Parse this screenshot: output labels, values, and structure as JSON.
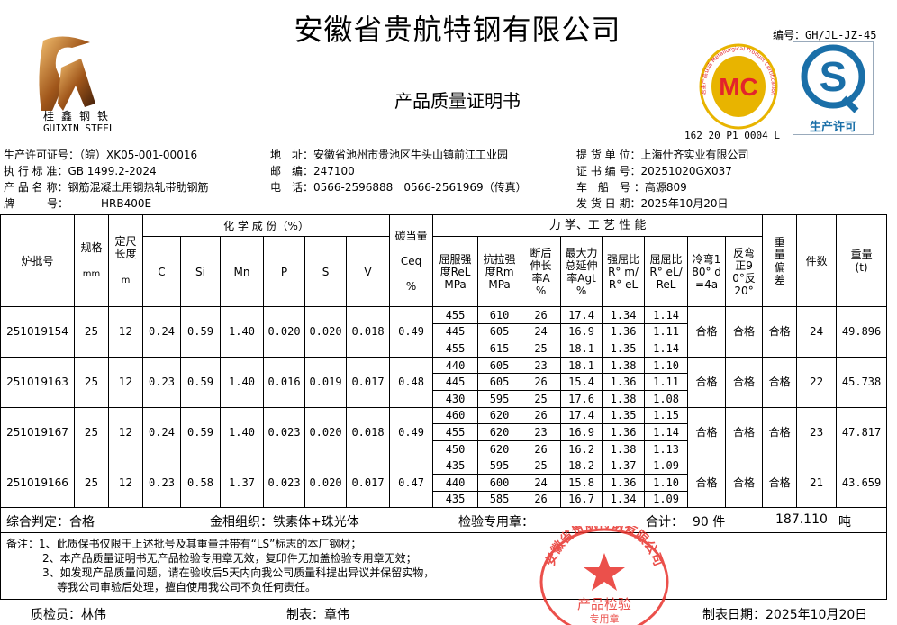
{
  "header": {
    "company": "安徽省贵航特钢有限公司",
    "doc_title": "产品质量证明书",
    "doc_number": "编号：GH/JL-JZ-45",
    "logo_cn": "桂鑫钢铁",
    "logo_en": "GUIXIN STEEL",
    "mc_text": "MC",
    "mc_ring": "冶金产品认证 Metallurgical Product Certification",
    "mc_code": "162 20 P1 0004 L",
    "qs_label": "生产许可"
  },
  "info": {
    "license": "生产许可证号：（皖）XK05-001-00016",
    "standard": "执 行 标 准：GB 1499.2-2024",
    "product": "产 品 名 称：钢筋混凝土用钢热轧带肋钢筋",
    "grade_label": "牌　　　号：",
    "grade": "HRB400E",
    "address": "地　址：安徽省池州市贵池区牛头山镇前江工业园",
    "postcode": "邮　编：247100",
    "phone": "电　话：0566-2596888　0566-2561969（传真）",
    "consignee": "提 货 单 位：上海仕齐实业有限公司",
    "cert_no": "证 书 编 号：20251020GX037",
    "vehicle": "车　船　号 ：高源809",
    "ship_date": "发 货 日 期：2025年10月20日"
  },
  "table": {
    "h_batch": "炉批号",
    "h_spec": "规格",
    "h_spec_u": "mm",
    "h_len": "定尺长度",
    "h_len_u": "m",
    "h_chem": "化 学 成 份（%）",
    "chem_cols": [
      "C",
      "Si",
      "Mn",
      "P",
      "S",
      "V"
    ],
    "h_ceq": "碳当量",
    "h_ceq2": "Ceq",
    "h_ceq_u": "%",
    "h_mech": "力 学、工 艺 性 能",
    "mech_cols": [
      "屈服强度ReL MPa",
      "抗拉强度Rm MPa",
      "断后伸长率A %",
      "最大力总延伸率Agt %",
      "强屈比R° m/R° eL",
      "屈屈比R° eL/ReL",
      "冷弯180° d=4a",
      "反弯正90°反20°"
    ],
    "h_dev": "重量偏差",
    "h_pcs": "件数",
    "h_wt": "重量(t)"
  },
  "batches": [
    {
      "batch": "251019154",
      "spec": "25",
      "len": "12",
      "chem": [
        "0.24",
        "0.59",
        "1.40",
        "0.020",
        "0.020",
        "0.018"
      ],
      "ceq": "0.49",
      "mech": [
        [
          "455",
          "610",
          "26",
          "17.4",
          "1.34",
          "1.14"
        ],
        [
          "445",
          "605",
          "24",
          "16.9",
          "1.36",
          "1.11"
        ],
        [
          "455",
          "615",
          "25",
          "18.1",
          "1.35",
          "1.14"
        ]
      ],
      "bend": "合格",
      "rebend": "合格",
      "dev": "合格",
      "pcs": "24",
      "wt": "49.896"
    },
    {
      "batch": "251019163",
      "spec": "25",
      "len": "12",
      "chem": [
        "0.23",
        "0.59",
        "1.40",
        "0.016",
        "0.019",
        "0.017"
      ],
      "ceq": "0.48",
      "mech": [
        [
          "440",
          "605",
          "23",
          "18.1",
          "1.38",
          "1.10"
        ],
        [
          "445",
          "605",
          "26",
          "15.4",
          "1.36",
          "1.11"
        ],
        [
          "430",
          "595",
          "25",
          "17.6",
          "1.38",
          "1.08"
        ]
      ],
      "bend": "合格",
      "rebend": "合格",
      "dev": "合格",
      "pcs": "22",
      "wt": "45.738"
    },
    {
      "batch": "251019167",
      "spec": "25",
      "len": "12",
      "chem": [
        "0.24",
        "0.59",
        "1.40",
        "0.023",
        "0.020",
        "0.018"
      ],
      "ceq": "0.49",
      "mech": [
        [
          "460",
          "620",
          "26",
          "17.4",
          "1.35",
          "1.15"
        ],
        [
          "455",
          "620",
          "23",
          "16.9",
          "1.36",
          "1.14"
        ],
        [
          "450",
          "620",
          "26",
          "16.2",
          "1.38",
          "1.13"
        ]
      ],
      "bend": "合格",
      "rebend": "合格",
      "dev": "合格",
      "pcs": "23",
      "wt": "47.817"
    },
    {
      "batch": "251019166",
      "spec": "25",
      "len": "12",
      "chem": [
        "0.23",
        "0.58",
        "1.37",
        "0.023",
        "0.020",
        "0.017"
      ],
      "ceq": "0.47",
      "mech": [
        [
          "435",
          "595",
          "25",
          "18.2",
          "1.37",
          "1.09"
        ],
        [
          "440",
          "600",
          "24",
          "15.8",
          "1.36",
          "1.10"
        ],
        [
          "435",
          "585",
          "26",
          "16.7",
          "1.34",
          "1.09"
        ]
      ],
      "bend": "合格",
      "rebend": "合格",
      "dev": "合格",
      "pcs": "21",
      "wt": "43.659"
    }
  ],
  "summary": {
    "verdict": "综合判定：合格",
    "structure": "金相组织：铁素体+珠光体",
    "stamp_label": "检验专用章：",
    "total_label": "合计：",
    "total_pcs": "90 件",
    "total_wt": "187.110",
    "unit": "吨"
  },
  "remarks": [
    "备注：1、此质保书仅限于上述批号及其重量并带有“LS”标志的本厂钢材；",
    "2、本产品质量证明书无产品检验专用章无效，复印件无加盖检验专用章无效；",
    "3、如发现产品质量问题，请在验收后5天内向我公司质量科提出异议并保留实物，",
    "等我公司审验后处理，擅自使用我公司不负任何责任。"
  ],
  "stamp": {
    "ring": "安徽省贵航特钢有限公司",
    "center": "产品检验",
    "bottom": "专用章"
  },
  "footer": {
    "inspector": "质检员：林伟",
    "preparer": "制表：章伟",
    "date": "制表日期：2025年10月20日"
  },
  "colors": {
    "stamp": "#e8322c",
    "mc_gold": "#e8b400",
    "qs_blue": "#1a6fa8"
  }
}
